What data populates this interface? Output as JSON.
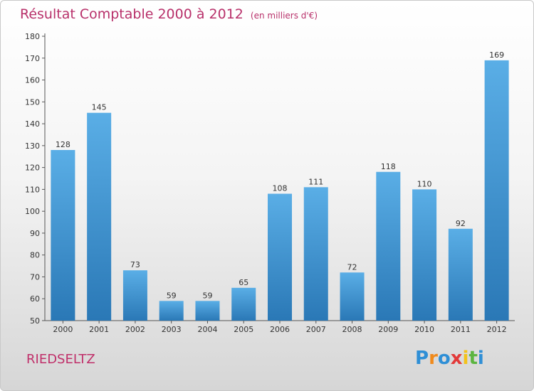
{
  "header": {
    "title": "Résultat Comptable 2000 à 2012",
    "subtitle": "(en milliers d'€)"
  },
  "footer": {
    "town": "RIEDSELTZ",
    "logo_text": "Proxiti"
  },
  "colors": {
    "title": "#b8306a",
    "bar_top": "#5aaee6",
    "bar_bottom": "#2a78b6",
    "logo_letters": [
      "#2f8fd6",
      "#f08a1c",
      "#2f8fd6",
      "#e23a3a",
      "#f3c21a",
      "#5cb540",
      "#2f8fd6"
    ]
  },
  "chart_data": {
    "type": "bar",
    "categories": [
      "2000",
      "2001",
      "2002",
      "2003",
      "2004",
      "2005",
      "2006",
      "2007",
      "2008",
      "2009",
      "2010",
      "2011",
      "2012"
    ],
    "values": [
      128,
      145,
      73,
      59,
      59,
      65,
      108,
      111,
      72,
      118,
      110,
      92,
      169
    ],
    "ylim": [
      50,
      180
    ],
    "yticks": [
      50,
      60,
      70,
      80,
      90,
      100,
      110,
      120,
      130,
      140,
      150,
      160,
      170,
      180
    ],
    "grid": false,
    "legend": "none"
  }
}
